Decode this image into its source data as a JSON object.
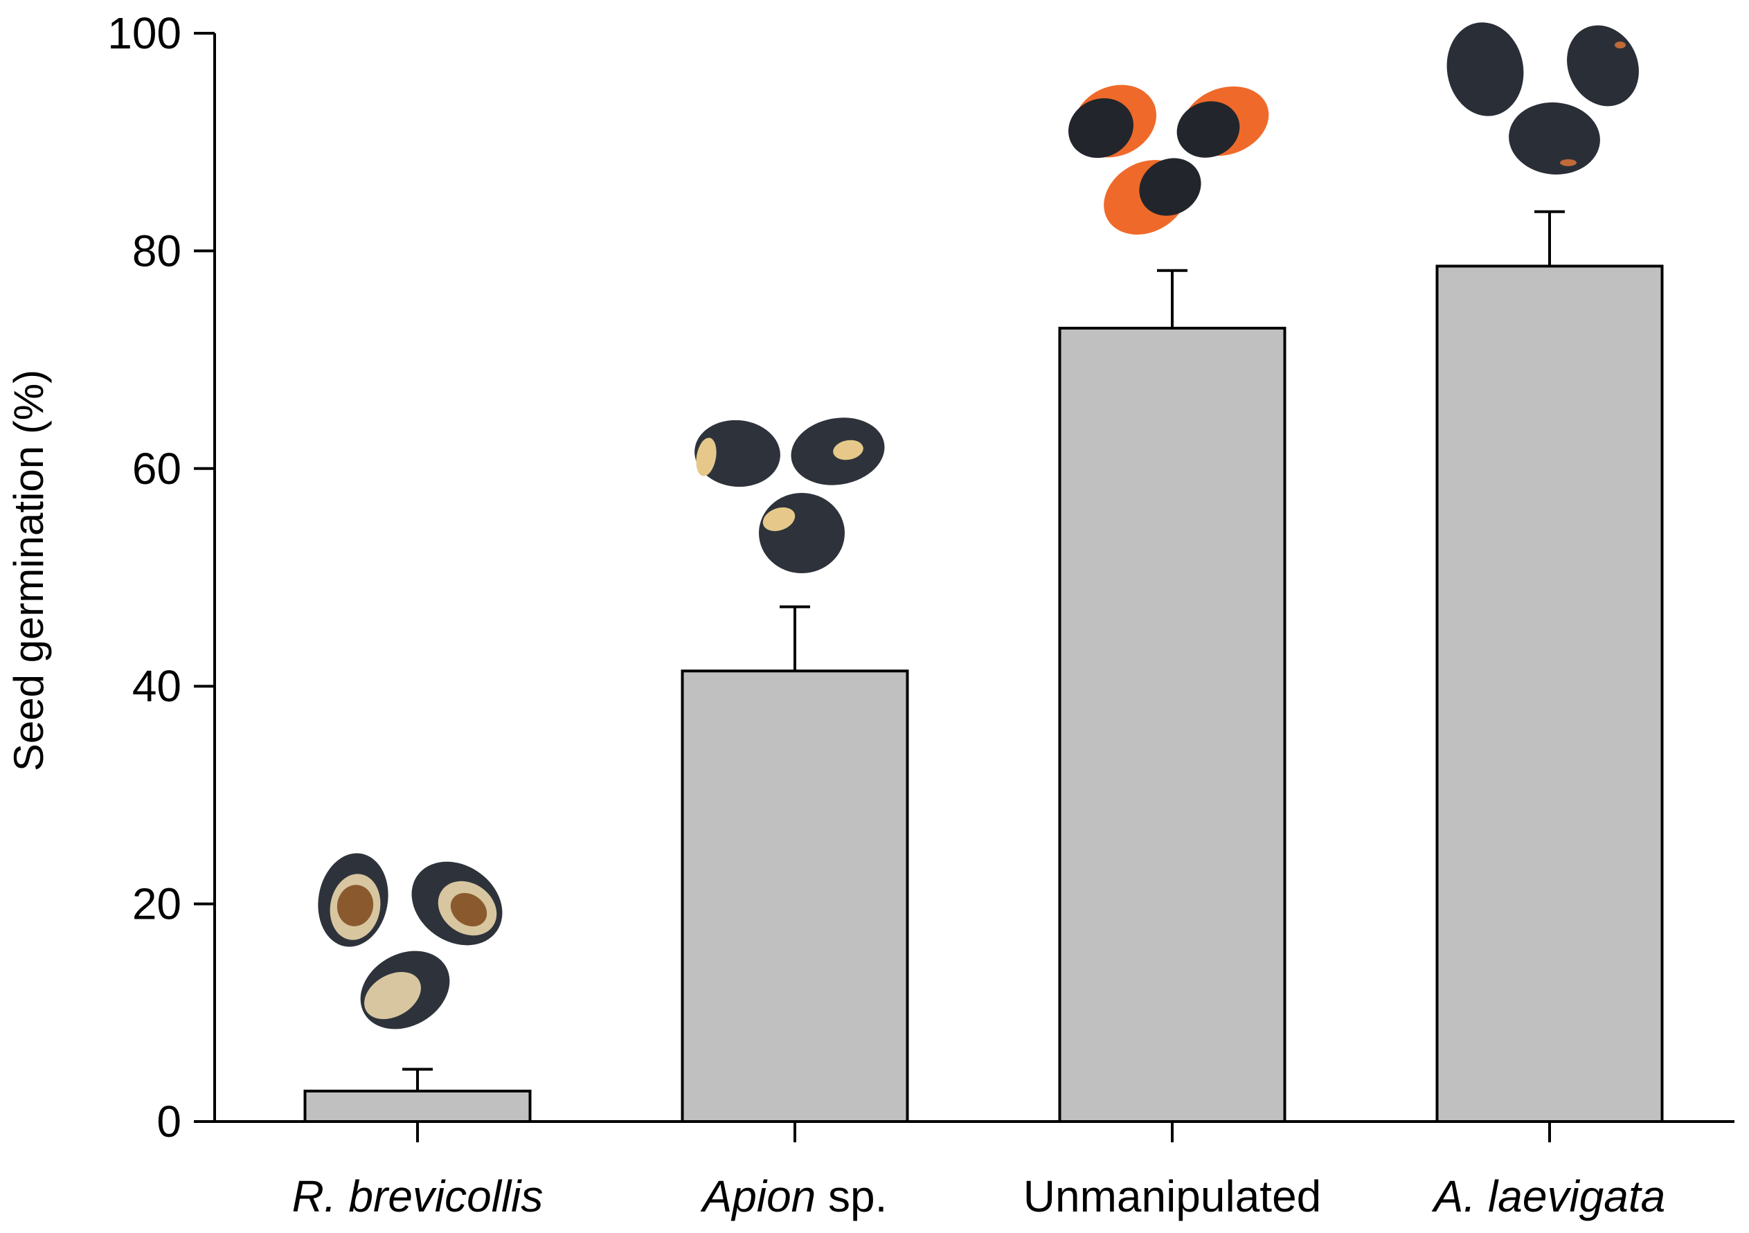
{
  "chart_data": {
    "type": "bar",
    "ylabel": "Seed germination (%)",
    "xlabel": "",
    "ylim": [
      0,
      100
    ],
    "yticks": [
      0,
      20,
      40,
      60,
      80,
      100
    ],
    "grid": false,
    "categories": [
      {
        "parts": [
          {
            "text": "R. brevicollis",
            "italic": true
          }
        ]
      },
      {
        "parts": [
          {
            "text": "Apion",
            "italic": true
          },
          {
            "text": " sp.",
            "italic": false
          }
        ]
      },
      {
        "parts": [
          {
            "text": "Unmanipulated",
            "italic": false
          }
        ]
      },
      {
        "parts": [
          {
            "text": "A. laevigata",
            "italic": true
          }
        ]
      }
    ],
    "values": [
      2.8,
      41.4,
      72.9,
      78.6
    ],
    "errors": [
      2.0,
      5.9,
      5.3,
      5.0
    ],
    "bar_color": "#c0c0c0",
    "seed_images": [
      {
        "kind": "hollow",
        "colors": [
          "#2e333b",
          "#d8c6a0",
          "#8a5a2e"
        ]
      },
      {
        "kind": "damaged",
        "colors": [
          "#2e333b",
          "#e6c98a"
        ]
      },
      {
        "kind": "arillate",
        "colors": [
          "#22262c",
          "#ef6a2a"
        ]
      },
      {
        "kind": "intact",
        "colors": [
          "#2a2f37",
          "#c06a38"
        ]
      }
    ]
  }
}
